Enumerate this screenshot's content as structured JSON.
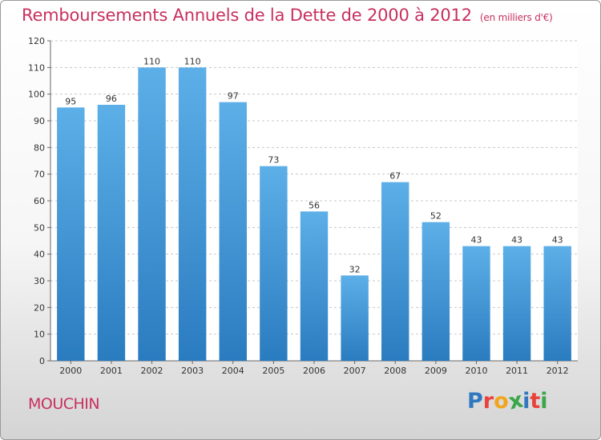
{
  "chart_data": {
    "type": "bar",
    "title": "Remboursements Annuels de la Dette de 2000 à 2012",
    "subtitle": "(en milliers d'€)",
    "categories": [
      "2000",
      "2001",
      "2002",
      "2003",
      "2004",
      "2005",
      "2006",
      "2007",
      "2008",
      "2009",
      "2010",
      "2011",
      "2012"
    ],
    "values": [
      95,
      96,
      110,
      110,
      97,
      73,
      56,
      32,
      67,
      52,
      43,
      43,
      43
    ],
    "ylim": [
      0,
      120
    ],
    "yticks": [
      0,
      10,
      20,
      30,
      40,
      50,
      60,
      70,
      80,
      90,
      100,
      110,
      120
    ],
    "grid": true,
    "bar_color_top": "#5dafe8",
    "bar_color_bottom": "#2a7cc0"
  },
  "footer": {
    "city": "MOUCHIN",
    "logo_letters": [
      "P",
      "r",
      "o",
      "x",
      "i",
      "t",
      "i"
    ],
    "logo_colors": [
      "#2f78c0",
      "#e8423c",
      "#f2a51c",
      "#3aa64a",
      "#2f78c0",
      "#e8423c",
      "#3aa64a"
    ]
  }
}
